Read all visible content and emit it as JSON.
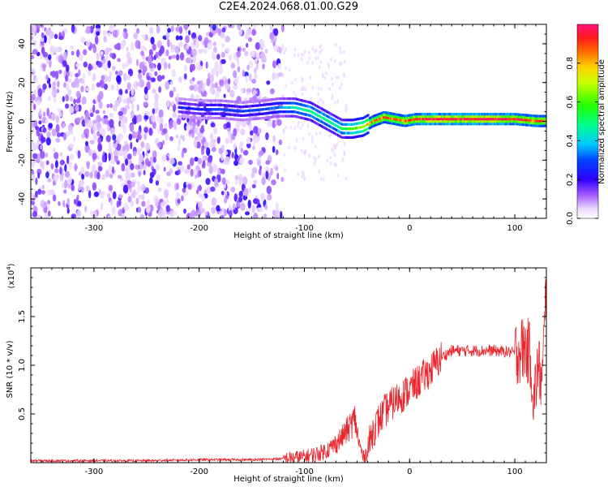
{
  "title": "C2E4.2024.068.01.00.G29",
  "chart_data": [
    {
      "type": "heatmap",
      "xlabel": "Height of straight line (km)",
      "ylabel": "Frequency (Hz)",
      "xlim": [
        -360,
        130
      ],
      "ylim": [
        -50,
        50
      ],
      "xticks": [
        -300,
        -200,
        -100,
        0,
        100
      ],
      "yticks": [
        -40,
        -20,
        0,
        20,
        40
      ],
      "colorbar": {
        "label": "Normalized spectral amplitude",
        "range": [
          0.0,
          1.0
        ],
        "ticks": [
          0.0,
          0.2,
          0.4,
          0.6,
          0.8
        ]
      },
      "signal_trace": {
        "x": [
          -220,
          -200,
          -180,
          -160,
          -140,
          -125,
          -110,
          -95,
          -85,
          -75,
          -65,
          -55,
          -45,
          -35,
          -25,
          -15,
          -5,
          5,
          20,
          40,
          60,
          80,
          100,
          120,
          130
        ],
        "freq": [
          7,
          6,
          6,
          5,
          6,
          7,
          7,
          5,
          2,
          -1,
          -4,
          -4,
          -3,
          0,
          2,
          1,
          0,
          1,
          1,
          1,
          1,
          1,
          1,
          0,
          0
        ],
        "amplitude": [
          0.25,
          0.25,
          0.3,
          0.28,
          0.3,
          0.35,
          0.45,
          0.5,
          0.5,
          0.5,
          0.5,
          0.6,
          0.7,
          0.85,
          0.9,
          0.85,
          0.9,
          0.95,
          1.0,
          1.0,
          1.0,
          1.0,
          0.95,
          0.9,
          0.85
        ]
      },
      "noise_region": [
        -360,
        -120
      ]
    },
    {
      "type": "line",
      "xlabel": "Height of straight line (km)",
      "ylabel": "SNR (10 * v/v)",
      "yscale_label": "(x10",
      "yscale_exponent": "4",
      "xlim": [
        -360,
        130
      ],
      "ylim": [
        0,
        2.0
      ],
      "xticks": [
        -300,
        -200,
        -100,
        0,
        100
      ],
      "yticks": [
        0.5,
        1.0,
        1.5
      ],
      "ytick_labels": [
        "0.5",
        "1.0",
        "1.5"
      ],
      "series": [
        {
          "color": "#e8262d",
          "x": [
            -360,
            -300,
            -250,
            -200,
            -150,
            -120,
            -100,
            -85,
            -75,
            -65,
            -58,
            -52,
            -48,
            -44,
            -40,
            -36,
            -30,
            -22,
            -12,
            0,
            10,
            20,
            30,
            40,
            60,
            80,
            100,
            110,
            115,
            118,
            122,
            126,
            130
          ],
          "y": [
            0.02,
            0.02,
            0.02,
            0.03,
            0.03,
            0.04,
            0.06,
            0.1,
            0.15,
            0.25,
            0.35,
            0.45,
            0.2,
            0.05,
            0.12,
            0.3,
            0.42,
            0.55,
            0.65,
            0.75,
            0.85,
            0.95,
            1.08,
            1.15,
            1.15,
            1.15,
            1.13,
            1.18,
            1.1,
            0.6,
            1.0,
            0.8,
            1.85
          ]
        }
      ]
    }
  ]
}
